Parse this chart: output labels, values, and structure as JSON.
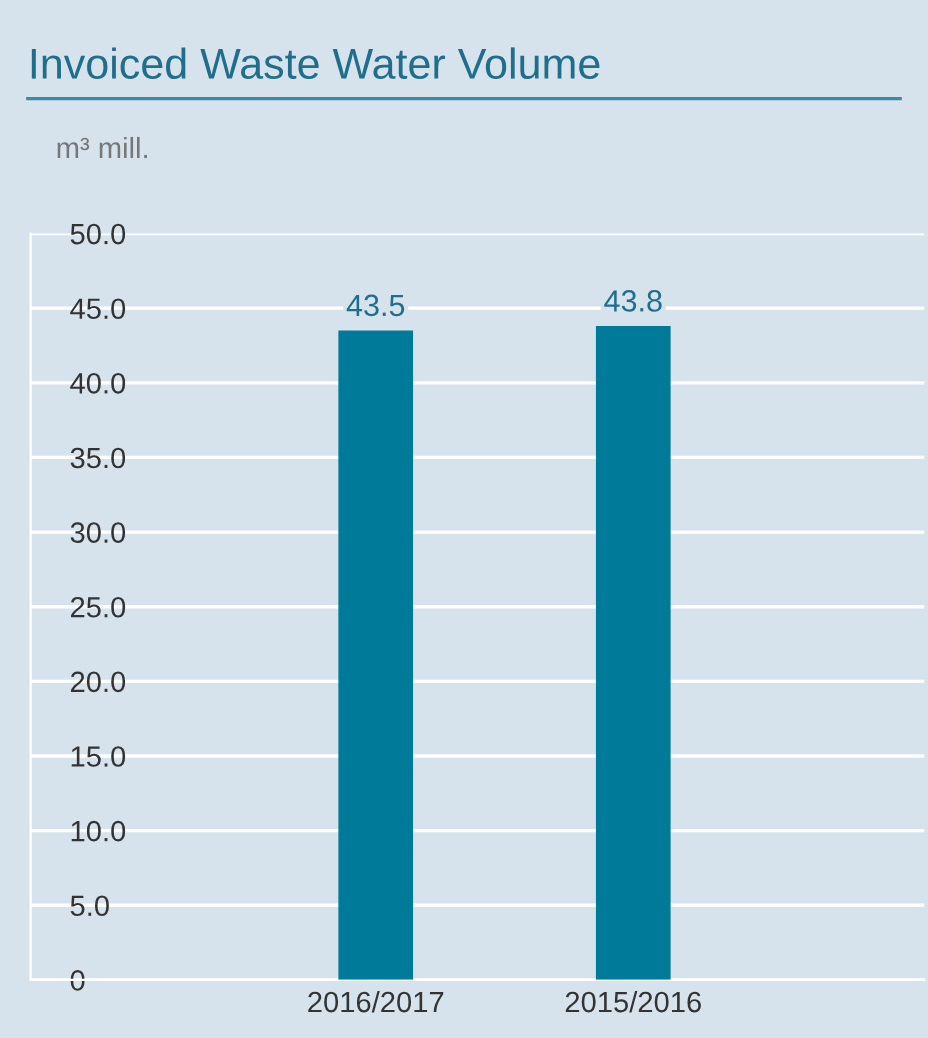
{
  "chart_data": {
    "type": "bar",
    "title": "Invoiced Waste Water Volume",
    "ylabel": "m³ mill.",
    "categories": [
      "2016/2017",
      "2015/2016"
    ],
    "values": [
      43.5,
      43.8
    ],
    "color": "#007a99",
    "ylim": [
      0,
      50
    ],
    "yticks": [
      {
        "value": 0,
        "label": "0"
      },
      {
        "value": 5,
        "label": "5.0"
      },
      {
        "value": 10,
        "label": "10.0"
      },
      {
        "value": 15,
        "label": "15.0"
      },
      {
        "value": 20,
        "label": "20.0"
      },
      {
        "value": 25,
        "label": "25.0"
      },
      {
        "value": 30,
        "label": "30.0"
      },
      {
        "value": 35,
        "label": "35.0"
      },
      {
        "value": 40,
        "label": "40.0"
      },
      {
        "value": 45,
        "label": "45.0"
      },
      {
        "value": 50,
        "label": "50.0"
      }
    ],
    "data_labels": true,
    "grid": "y"
  }
}
